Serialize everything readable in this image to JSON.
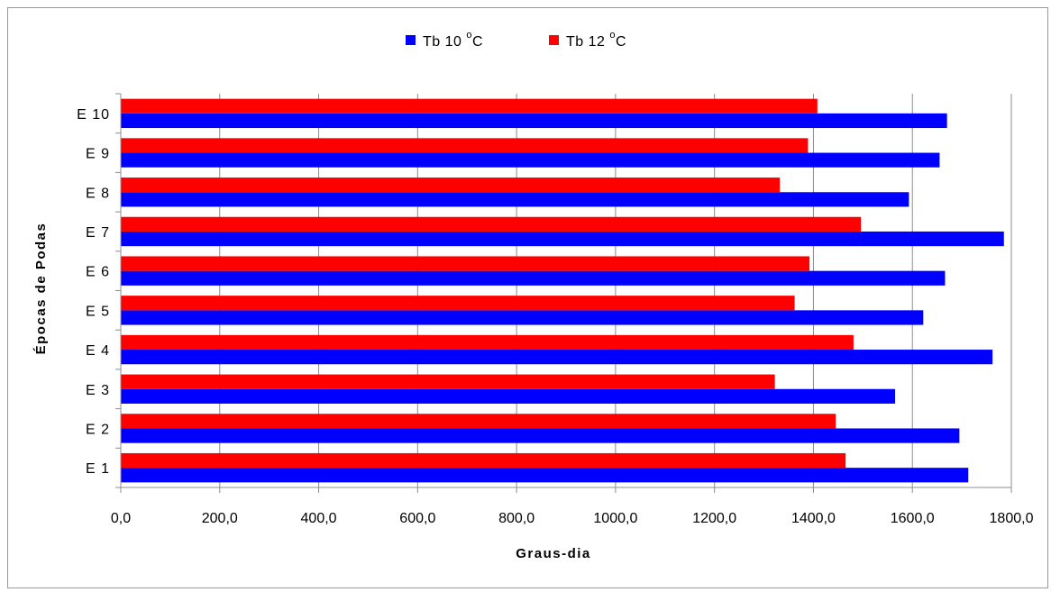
{
  "chart_data": {
    "type": "bar",
    "orientation": "horizontal",
    "categories": [
      "E 1",
      "E 2",
      "E 3",
      "E 4",
      "E 5",
      "E 6",
      "E 7",
      "E 8",
      "E 9",
      "E 10"
    ],
    "series": [
      {
        "name": "Tb 10 °C",
        "name_main": "Tb 10 ",
        "name_sup": "o",
        "name_unit": "C",
        "color": "#0000FF",
        "values": [
          1713,
          1695,
          1565,
          1762,
          1622,
          1666,
          1785,
          1593,
          1655,
          1670
        ]
      },
      {
        "name": "Tb 12 °C",
        "name_main": "Tb 12 ",
        "name_sup": "o",
        "name_unit": "C",
        "color": "#FF0000",
        "values": [
          1465,
          1445,
          1322,
          1481,
          1362,
          1392,
          1496,
          1332,
          1389,
          1408
        ]
      }
    ],
    "xlabel": "Graus-dia",
    "ylabel": "Épocas de Podas",
    "xlim": [
      0,
      1800
    ],
    "xticks": [
      "0,0",
      "200,0",
      "400,0",
      "600,0",
      "800,0",
      "1000,0",
      "1200,0",
      "1400,0",
      "1600,0",
      "1800,0"
    ],
    "xtick_values": [
      0,
      200,
      400,
      600,
      800,
      1000,
      1200,
      1400,
      1600,
      1800
    ],
    "grid": "vertical",
    "legend_position": "top-center"
  }
}
